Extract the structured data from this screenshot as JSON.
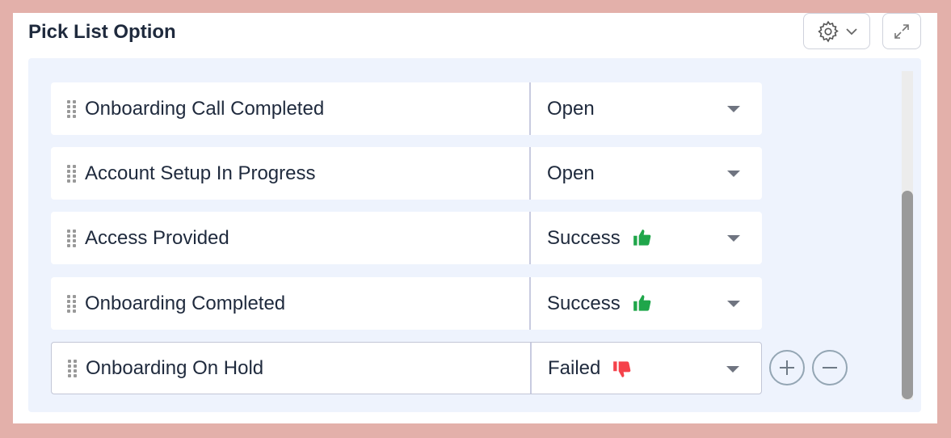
{
  "title": "Pick List Option",
  "toolbar": {
    "settings_icon": "gear-icon",
    "expand_icon": "expand-icon"
  },
  "options": [
    {
      "label": "Onboarding Call Completed",
      "status": "Open",
      "icon": null
    },
    {
      "label": "Account Setup In Progress",
      "status": "Open",
      "icon": null
    },
    {
      "label": "Access Provided",
      "status": "Success",
      "icon": "thumbs-up"
    },
    {
      "label": "Onboarding Completed",
      "status": "Success",
      "icon": "thumbs-up"
    },
    {
      "label": "Onboarding On Hold",
      "status": "Failed",
      "icon": "thumbs-down"
    }
  ],
  "colors": {
    "success": "#1fa64a",
    "failed": "#f5424b",
    "accent_bg": "#eef3fd"
  }
}
